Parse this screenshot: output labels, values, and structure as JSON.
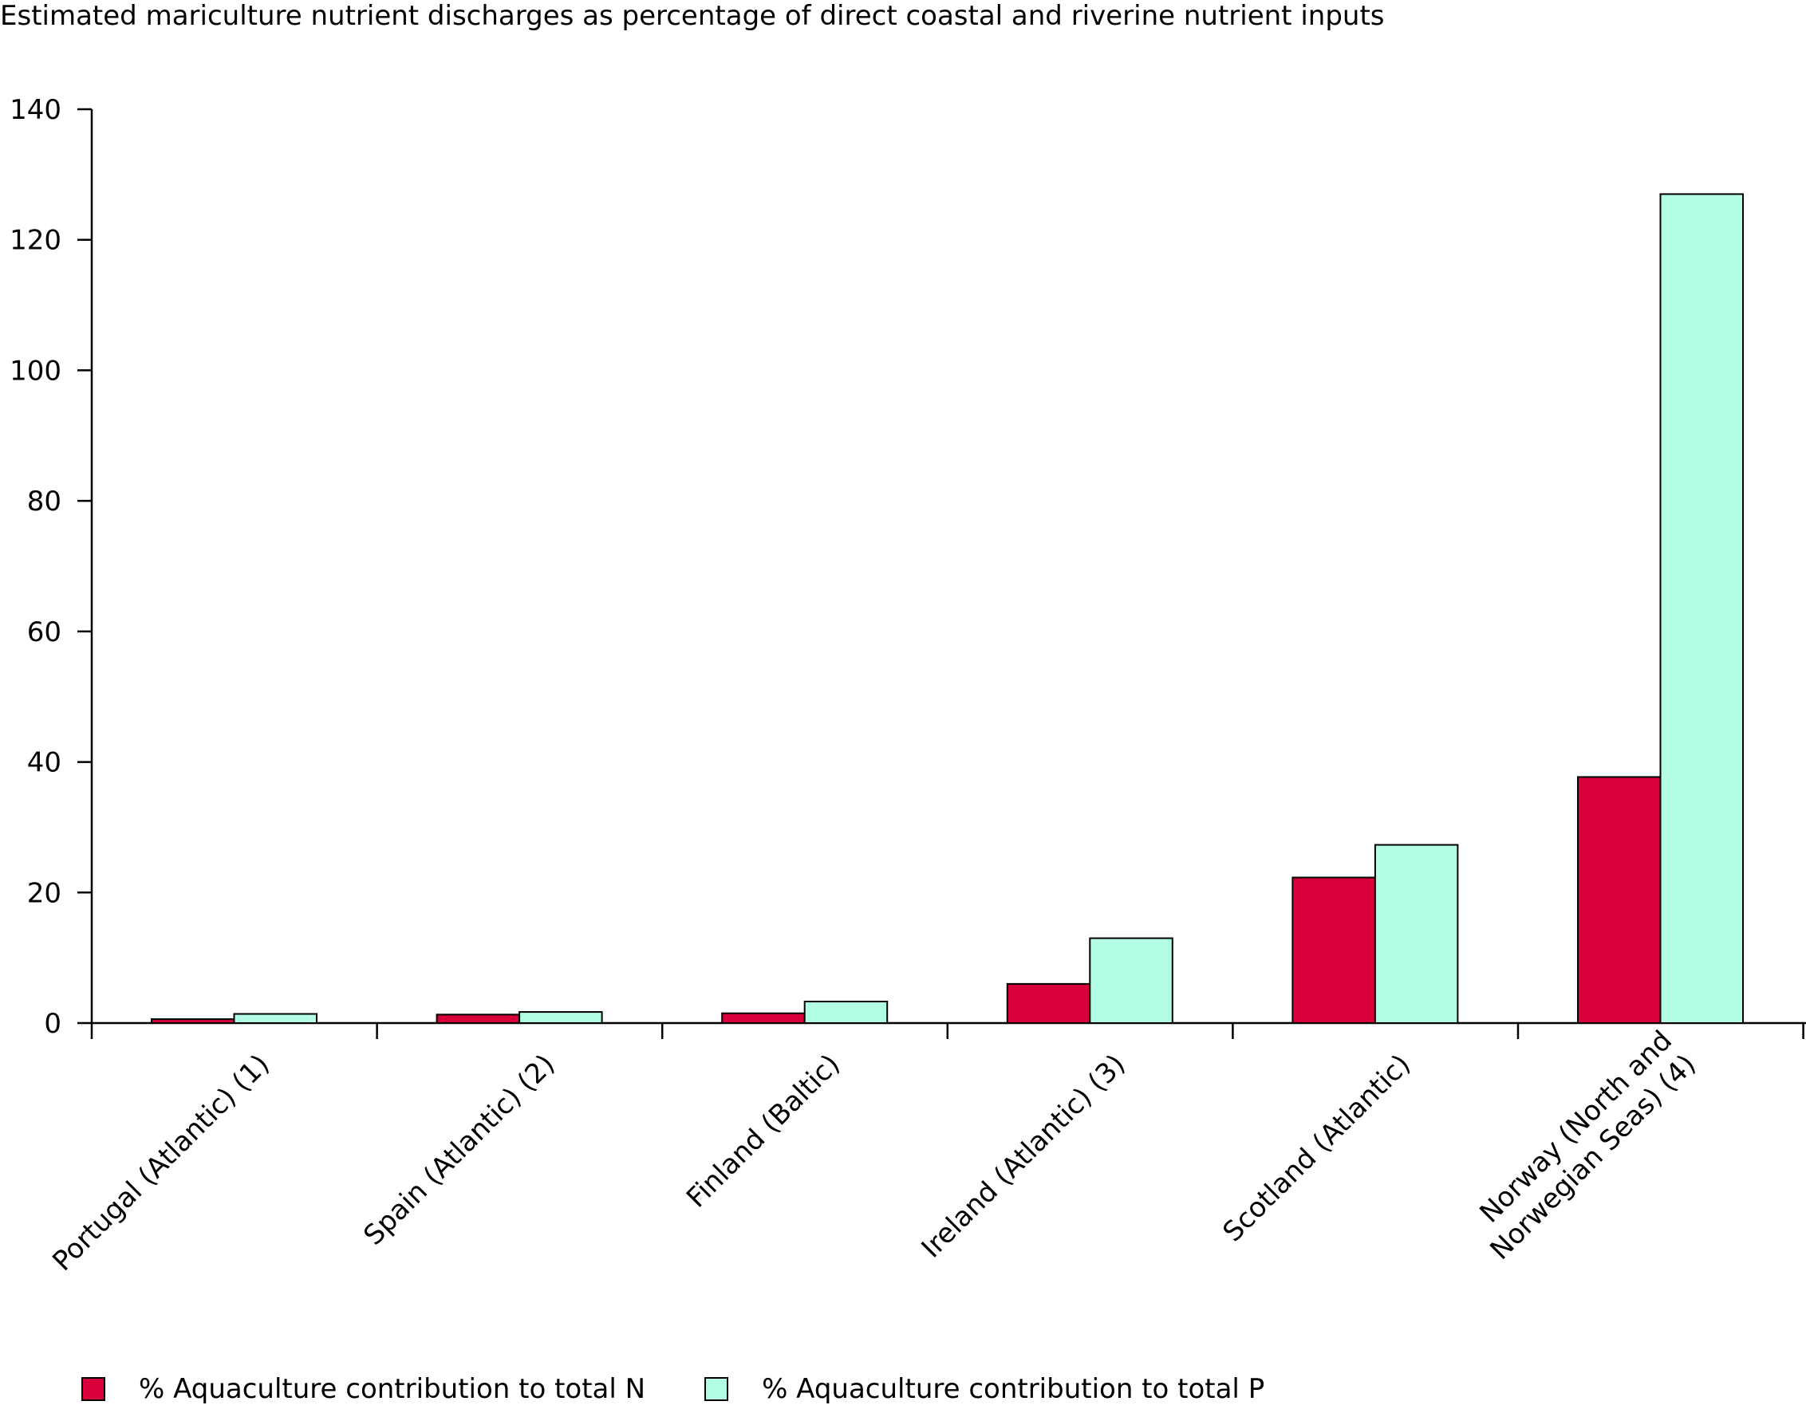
{
  "chart_data": {
    "type": "bar",
    "title": "Estimated mariculture nutrient discharges as percentage of direct coastal and riverine nutrient inputs",
    "xlabel": "",
    "ylabel": "",
    "ylim": [
      0,
      140
    ],
    "yticks": [
      "0",
      "20",
      "40",
      "60",
      "80",
      "100",
      "120",
      "140"
    ],
    "grid": false,
    "legend_position": "bottom",
    "categories": [
      [
        "Portugal (Atlantic) (1)"
      ],
      [
        "Spain (Atlantic) (2)"
      ],
      [
        "Finland (Baltic)"
      ],
      [
        "Ireland (Atlantic) (3)"
      ],
      [
        "Scotland (Atlantic)"
      ],
      [
        "Norway (North and",
        "Norwegian Seas) (4)"
      ]
    ],
    "series": [
      {
        "name": "% Aquaculture contribution to total N",
        "color": "#d8003a",
        "values": [
          0.6,
          1.3,
          1.5,
          6.0,
          22.3,
          37.7
        ]
      },
      {
        "name": "% Aquaculture contribution to total P",
        "color": "#b3fce6",
        "values": [
          1.4,
          1.7,
          3.3,
          13.0,
          27.3,
          127.0
        ]
      }
    ]
  }
}
